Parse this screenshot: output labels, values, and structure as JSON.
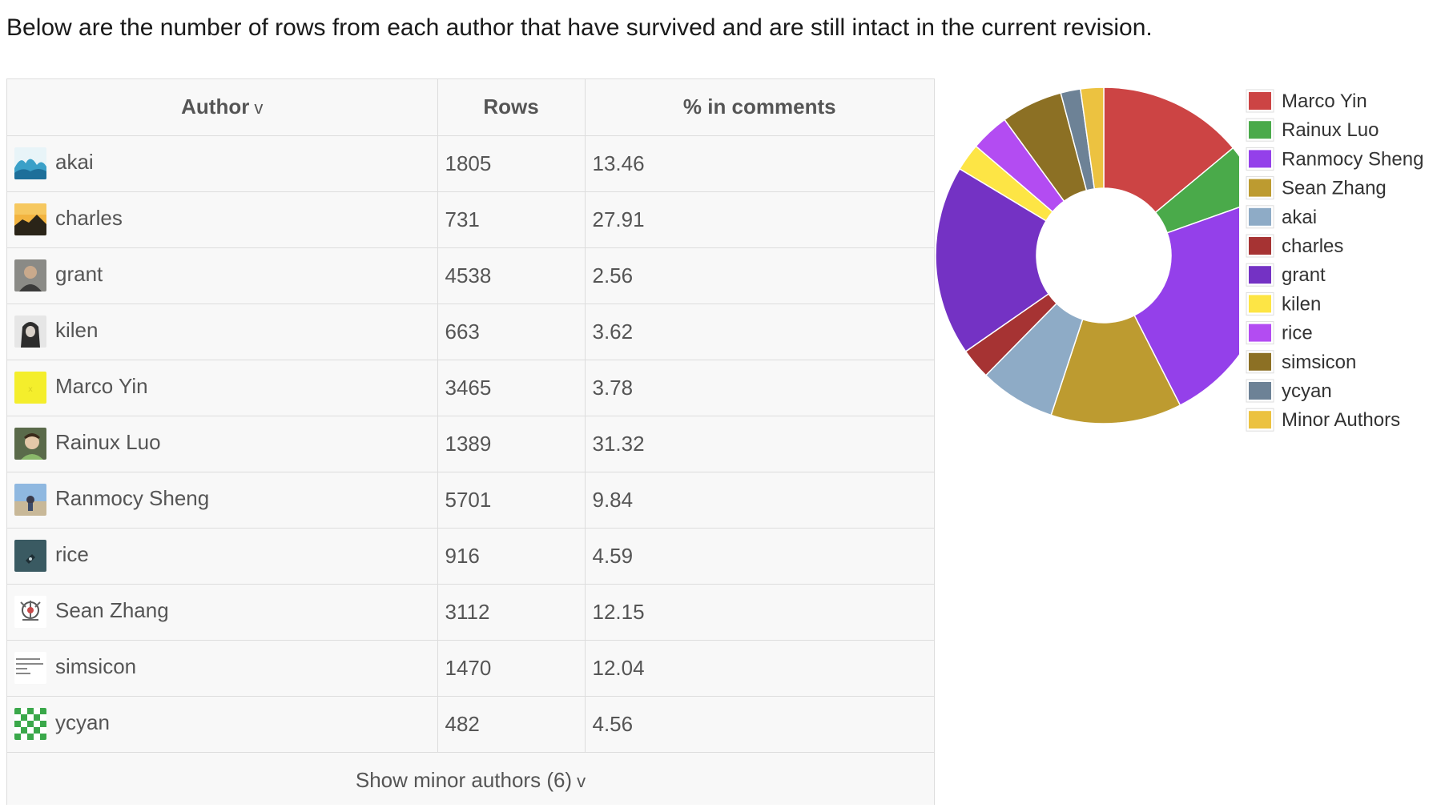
{
  "intro": "Below are the number of rows from each author that have survived and are still intact in the current revision.",
  "table": {
    "headers": {
      "author": "Author",
      "author_sort": "v",
      "rows": "Rows",
      "comments": "% in comments"
    },
    "rows": [
      {
        "author": "akai",
        "rows": "1805",
        "pct": "13.46",
        "avatar": "waves-icon"
      },
      {
        "author": "charles",
        "rows": "731",
        "pct": "27.91",
        "avatar": "sunset-landscape-icon"
      },
      {
        "author": "grant",
        "rows": "4538",
        "pct": "2.56",
        "avatar": "person-photo-icon"
      },
      {
        "author": "kilen",
        "rows": "663",
        "pct": "3.62",
        "avatar": "hooded-figure-icon"
      },
      {
        "author": "Marco Yin",
        "rows": "3465",
        "pct": "3.78",
        "avatar": "yellow-square-icon"
      },
      {
        "author": "Rainux Luo",
        "rows": "1389",
        "pct": "31.32",
        "avatar": "portrait-photo-icon"
      },
      {
        "author": "Ranmocy Sheng",
        "rows": "5701",
        "pct": "9.84",
        "avatar": "beach-photo-icon"
      },
      {
        "author": "rice",
        "rows": "916",
        "pct": "4.59",
        "avatar": "dark-teal-icon"
      },
      {
        "author": "Sean Zhang",
        "rows": "3112",
        "pct": "12.15",
        "avatar": "emblem-icon"
      },
      {
        "author": "simsicon",
        "rows": "1470",
        "pct": "12.04",
        "avatar": "text-note-icon"
      },
      {
        "author": "ycyan",
        "rows": "482",
        "pct": "4.56",
        "avatar": "green-identicon-icon"
      }
    ],
    "minor": {
      "label": "Show minor authors (6)",
      "caret": "v"
    }
  },
  "chart_data": {
    "type": "pie",
    "donut": true,
    "legend_position": "right",
    "slices": [
      {
        "label": "Marco Yin",
        "value": 13.2,
        "color": "#cc4444"
      },
      {
        "label": "Rainux Luo",
        "value": 5.3,
        "color": "#4aaa4a"
      },
      {
        "label": "Ranmocy Sheng",
        "value": 21.7,
        "color": "#9440ea"
      },
      {
        "label": "Sean Zhang",
        "value": 11.9,
        "color": "#bd9b30"
      },
      {
        "label": "akai",
        "value": 6.9,
        "color": "#8eabc6"
      },
      {
        "label": "charles",
        "value": 2.8,
        "color": "#a63333"
      },
      {
        "label": "grant",
        "value": 17.3,
        "color": "#7432c4"
      },
      {
        "label": "kilen",
        "value": 2.5,
        "color": "#fde545"
      },
      {
        "label": "rice",
        "value": 3.5,
        "color": "#b34cf2"
      },
      {
        "label": "simsicon",
        "value": 5.6,
        "color": "#8c7024"
      },
      {
        "label": "ycyan",
        "value": 1.8,
        "color": "#6d8296"
      },
      {
        "label": "Minor Authors",
        "value": 2.1,
        "color": "#ecc240"
      }
    ]
  }
}
